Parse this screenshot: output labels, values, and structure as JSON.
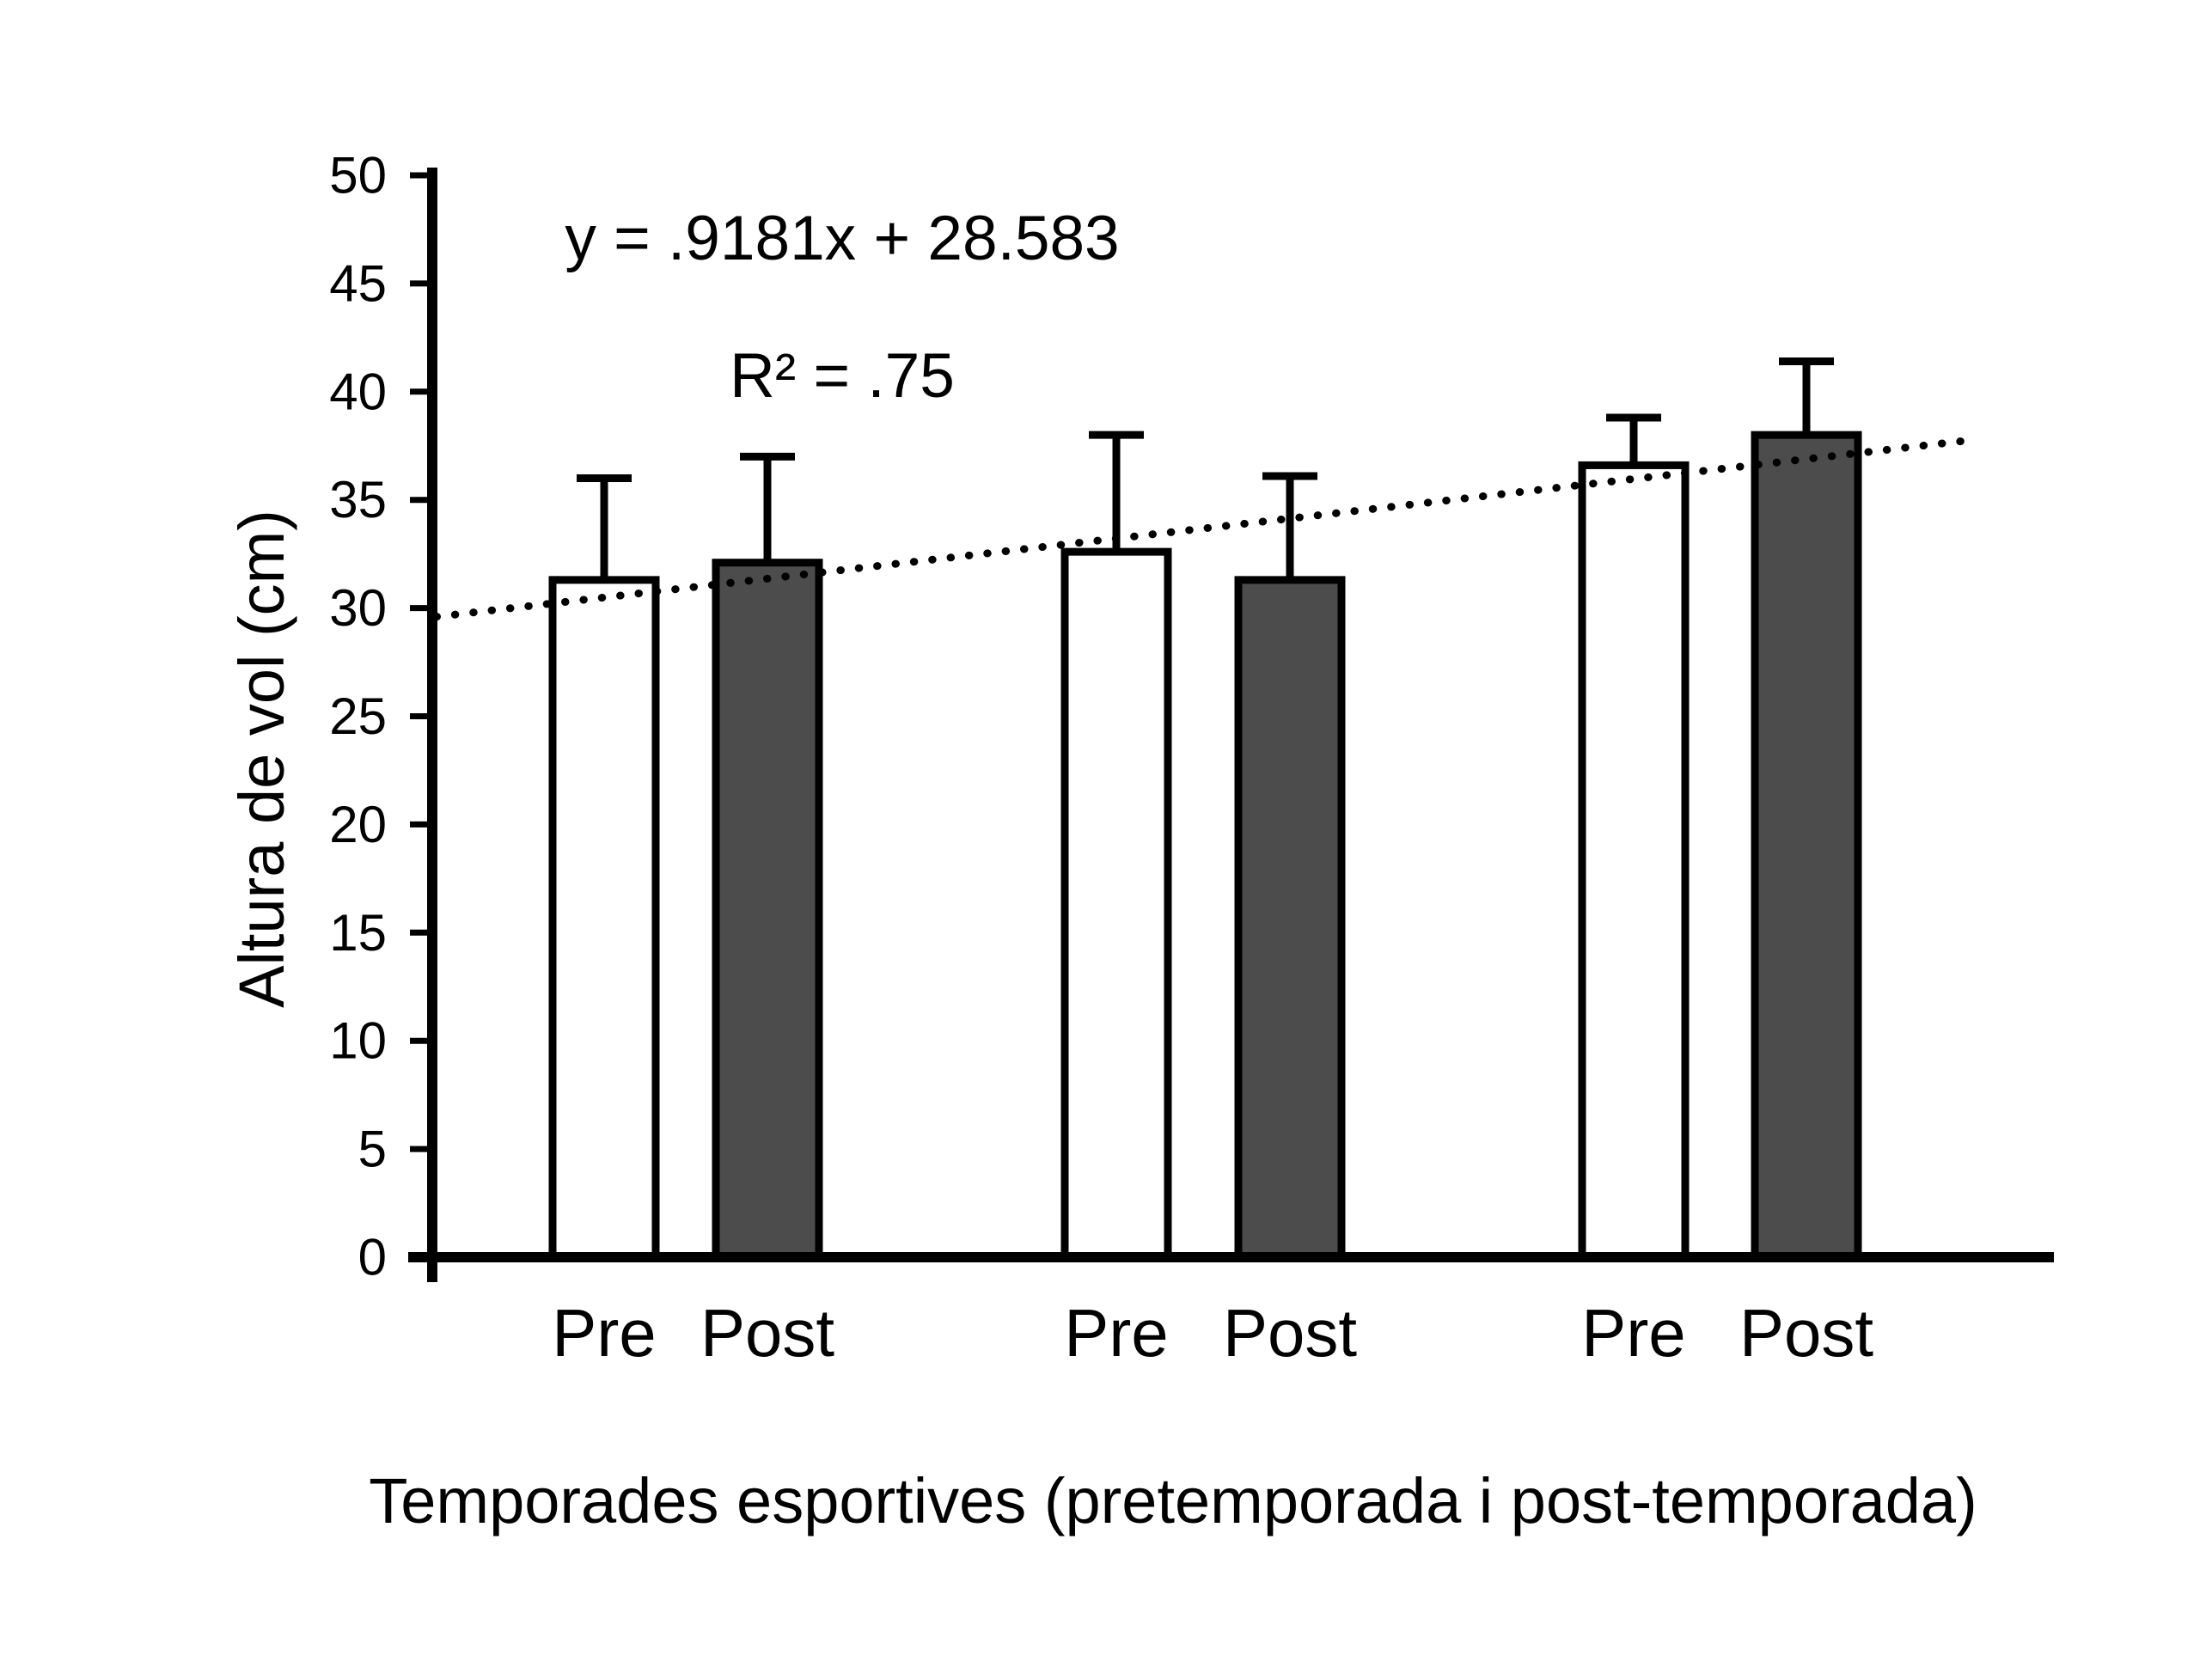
{
  "chart_data": {
    "type": "bar",
    "y_axis": {
      "title": "Altura de vol (cm)",
      "min": 0,
      "max": 50,
      "tick_step": 5,
      "ticks": [
        0,
        5,
        10,
        15,
        20,
        25,
        30,
        35,
        40,
        45,
        50
      ]
    },
    "x_axis": {
      "title": "Temporades esportives (pretemporada i post-temporada)"
    },
    "bars": [
      {
        "season": 1,
        "label": "Pre",
        "type": "pre",
        "value": 31.3,
        "error_plus": 4.7
      },
      {
        "season": 1,
        "label": "Post",
        "type": "post",
        "value": 32.1,
        "error_plus": 4.9
      },
      {
        "season": 2,
        "label": "Pre",
        "type": "pre",
        "value": 32.6,
        "error_plus": 5.4
      },
      {
        "season": 2,
        "label": "Post",
        "type": "post",
        "value": 31.3,
        "error_plus": 4.8
      },
      {
        "season": 3,
        "label": "Pre",
        "type": "pre",
        "value": 36.6,
        "error_plus": 2.2
      },
      {
        "season": 3,
        "label": "Post",
        "type": "post",
        "value": 38.0,
        "error_plus": 3.4
      }
    ],
    "trendline": {
      "equation": "y = .9181x + 28.583",
      "r_squared": "R² = .75",
      "style": "dotted",
      "start_value": 29.6,
      "end_value": 37.8
    },
    "colors": {
      "pre_fill": "#ffffff",
      "post_fill": "#4c4c4c",
      "stroke": "#000000",
      "background": "#ffffff"
    },
    "legend": "none",
    "grid": "off"
  }
}
